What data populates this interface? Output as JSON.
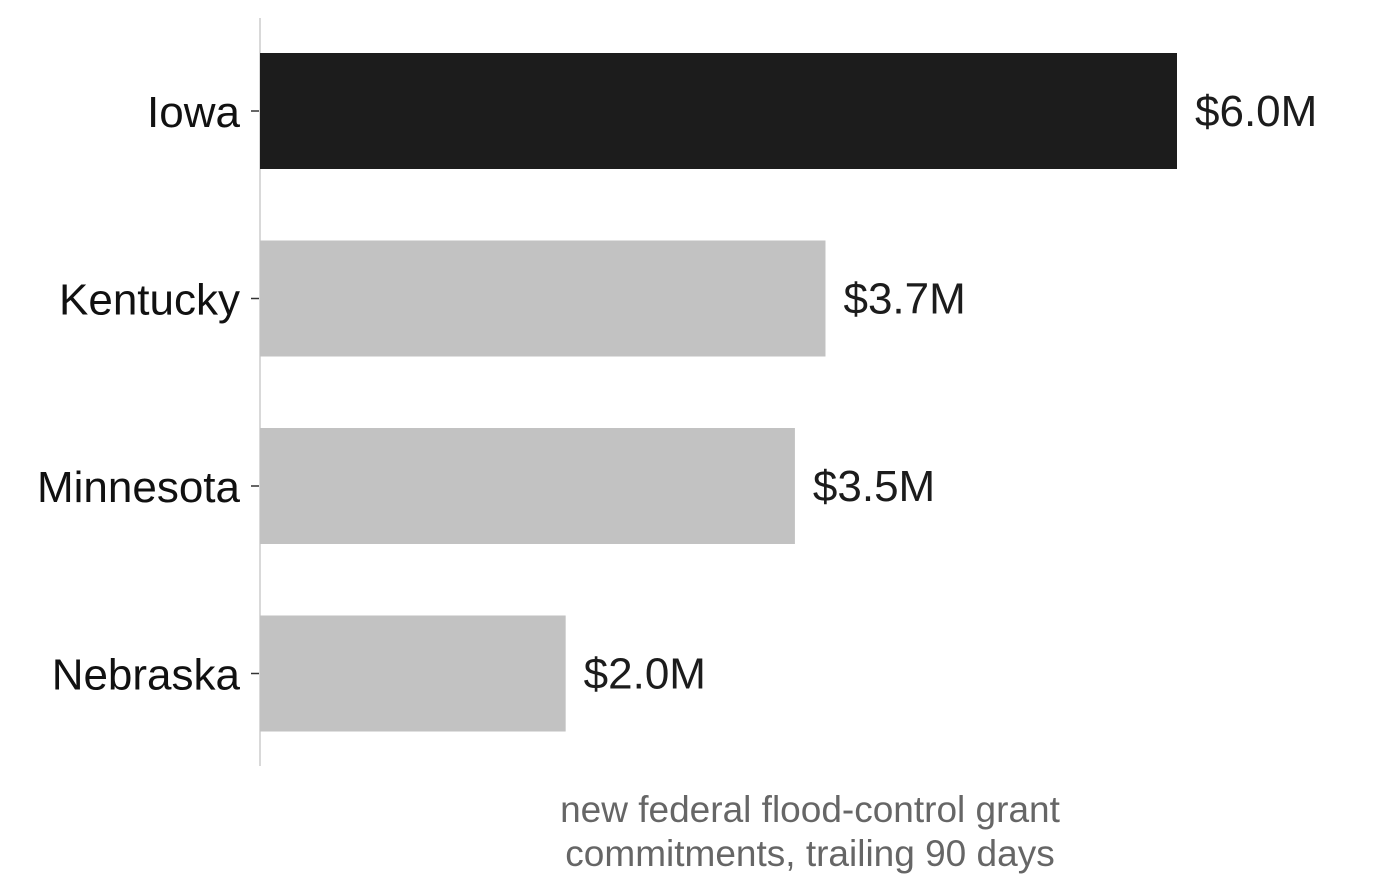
{
  "chart_data": {
    "type": "bar",
    "orientation": "horizontal",
    "categories": [
      "Iowa",
      "Kentucky",
      "Minnesota",
      "Nebraska"
    ],
    "values": [
      6.0,
      3.7,
      3.5,
      2.0
    ],
    "value_labels": [
      "$6.0M",
      "$3.7M",
      "$3.5M",
      "$2.0M"
    ],
    "highlight_index": 0,
    "title": "",
    "xlabel_lines": [
      "new federal flood-control grant",
      "commitments, trailing 90 days"
    ],
    "ylabel": "",
    "xlim": [
      0,
      6.0
    ],
    "grid": false,
    "legend": "none",
    "colors": {
      "highlight": "#1c1c1c",
      "default": "#c2c2c2",
      "axis": "#d9d9d9",
      "tick": "#333333"
    }
  }
}
